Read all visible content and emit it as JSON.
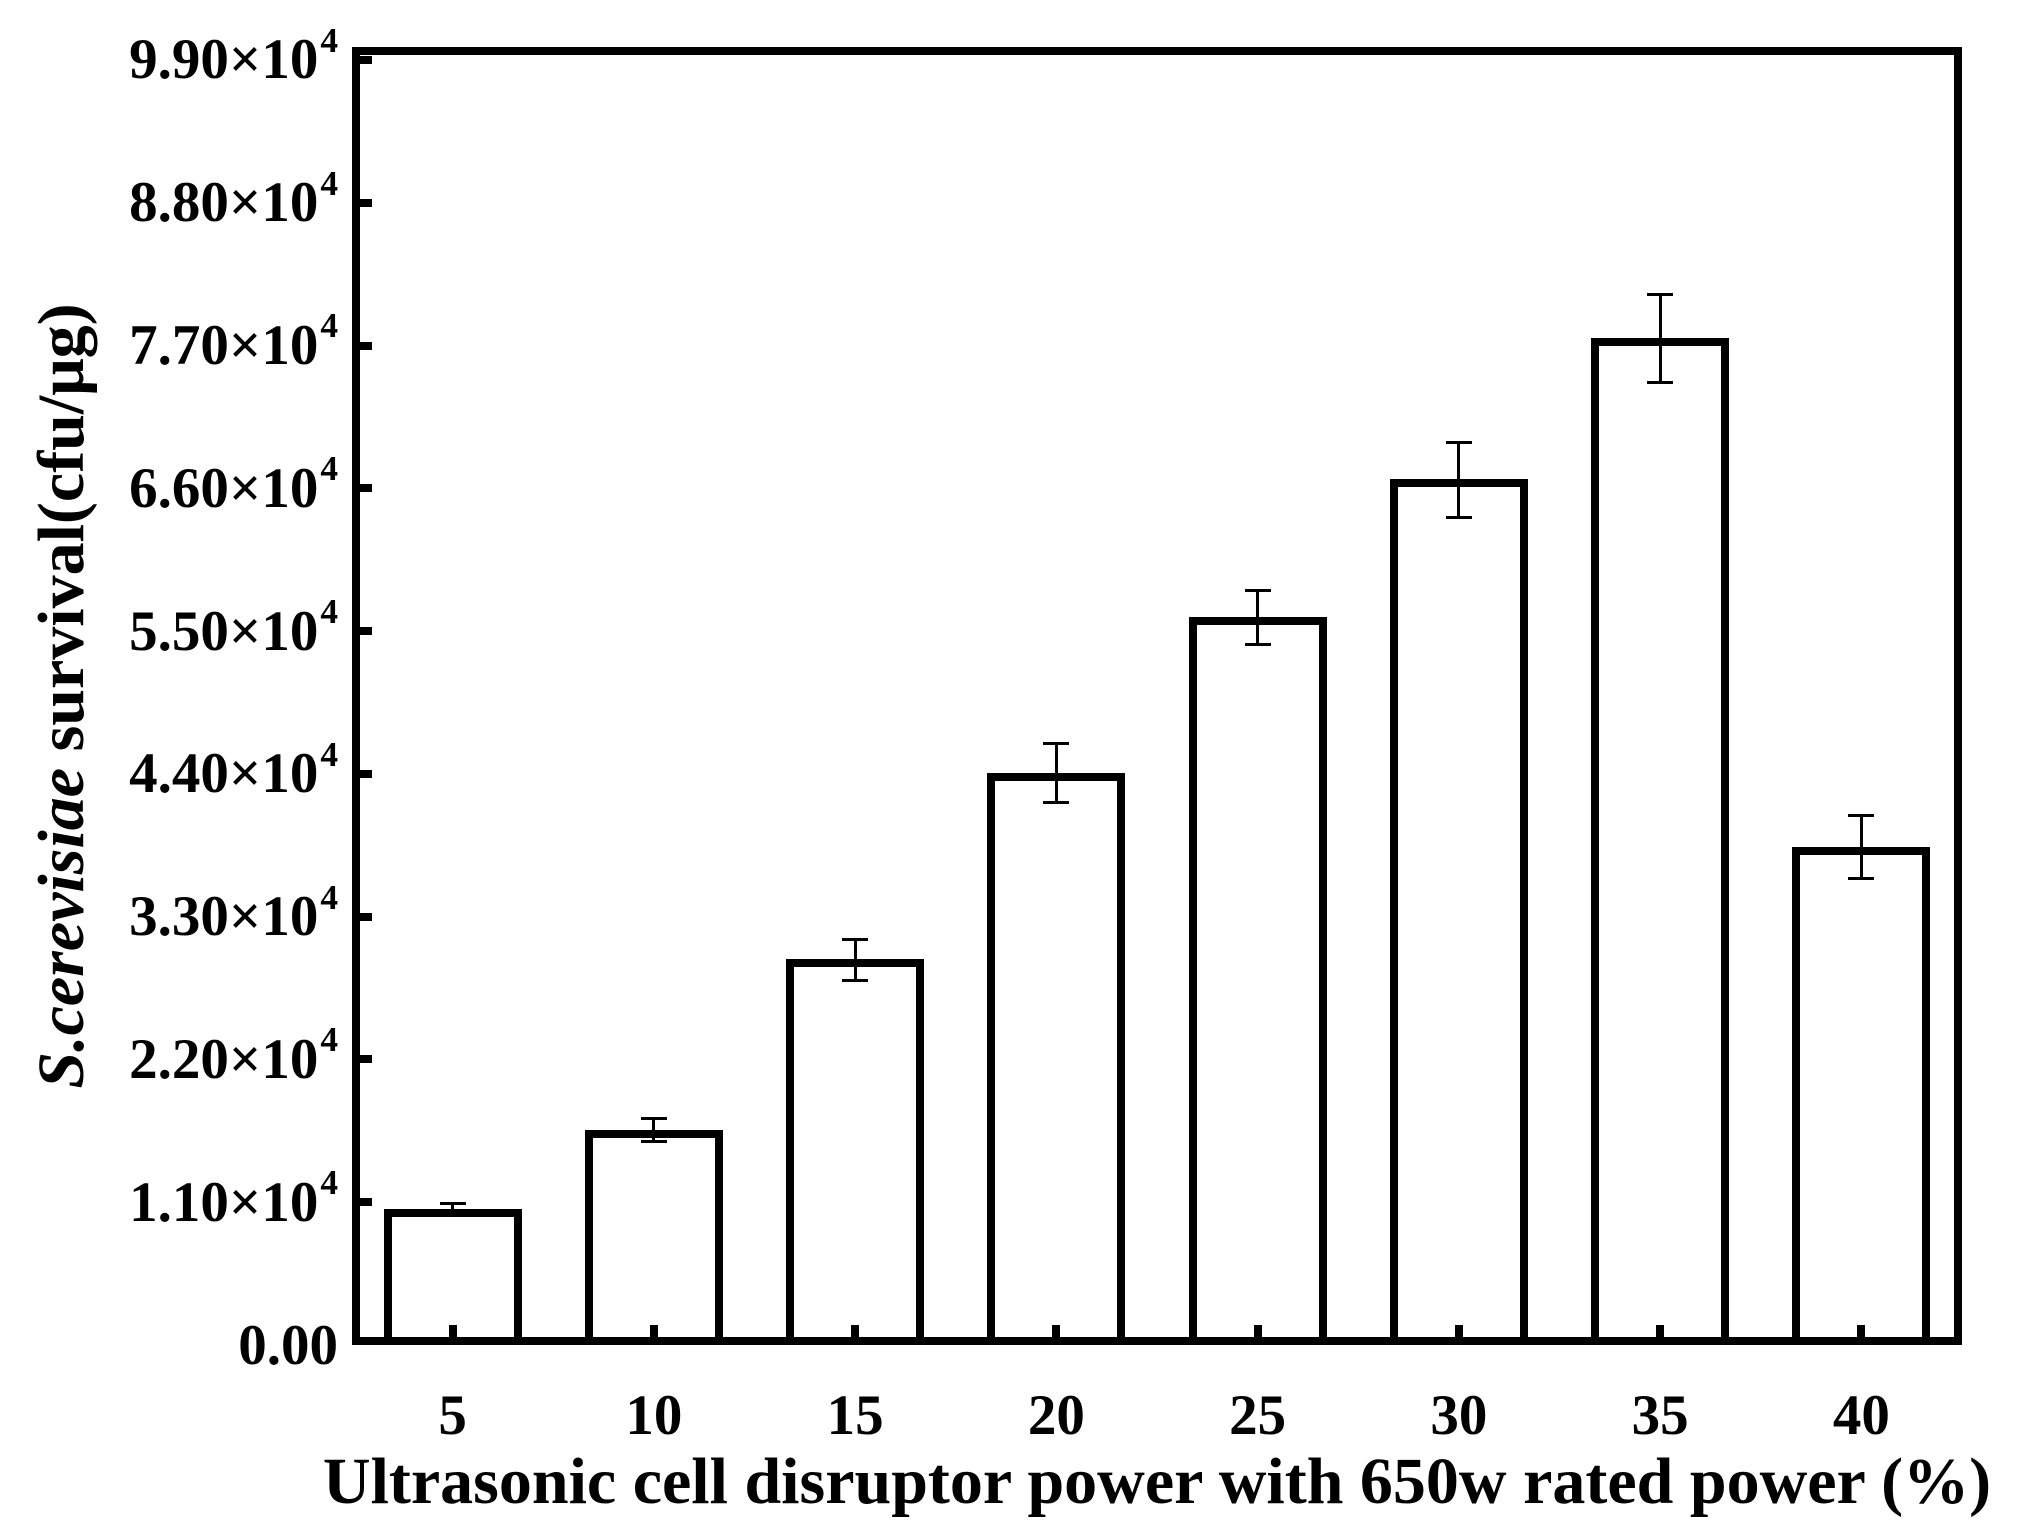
{
  "figure": {
    "background": "#ffffff",
    "ink": "#000000"
  },
  "chart_data": {
    "type": "bar",
    "title": "",
    "xlabel": "Ultrasonic cell disruptor power with 650w rated power (%)",
    "ylabel_italic": "S.cerevisiae",
    "ylabel_rest": " survival(cfu/μg)",
    "categories": [
      "5",
      "10",
      "15",
      "20",
      "25",
      "30",
      "35",
      "40"
    ],
    "values": [
      10500,
      16600,
      29700,
      44100,
      56100,
      66700,
      77600,
      38400
    ],
    "errors": [
      430,
      850,
      1600,
      2300,
      2100,
      2900,
      3400,
      2400
    ],
    "bar_fill": "#ffffff",
    "bar_edge": "#000000",
    "grid": false,
    "legend": null,
    "ylim": [
      0,
      100000
    ],
    "yticks": [
      {
        "value": 0,
        "mantissa": "0.00",
        "exponent": ""
      },
      {
        "value": 11000,
        "mantissa": "1.10×10",
        "exponent": "4"
      },
      {
        "value": 22000,
        "mantissa": "2.20×10",
        "exponent": "4"
      },
      {
        "value": 33000,
        "mantissa": "3.30×10",
        "exponent": "4"
      },
      {
        "value": 44000,
        "mantissa": "4.40×10",
        "exponent": "4"
      },
      {
        "value": 55000,
        "mantissa": "5.50×10",
        "exponent": "4"
      },
      {
        "value": 66000,
        "mantissa": "6.60×10",
        "exponent": "4"
      },
      {
        "value": 77000,
        "mantissa": "7.70×10",
        "exponent": "4"
      },
      {
        "value": 88000,
        "mantissa": "8.80×10",
        "exponent": "4"
      },
      {
        "value": 99000,
        "mantissa": "9.90×10",
        "exponent": "4"
      }
    ]
  }
}
